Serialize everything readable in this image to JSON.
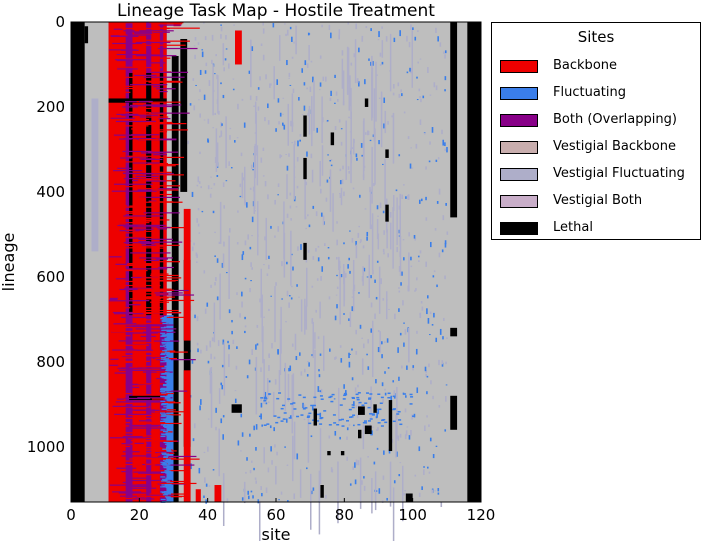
{
  "chart_data": {
    "type": "heatmap",
    "title": "Lineage Task Map - Hostile Treatment",
    "xlabel": "site",
    "ylabel": "lineage",
    "xlim": [
      0,
      120
    ],
    "ylim": [
      1130,
      0
    ],
    "xticks": [
      "0",
      "20",
      "40",
      "60",
      "80",
      "100",
      "120"
    ],
    "yticks": [
      "0",
      "200",
      "400",
      "600",
      "800",
      "1000"
    ],
    "xtick_values": [
      0,
      20,
      40,
      60,
      80,
      100,
      120
    ],
    "ytick_values": [
      0,
      200,
      400,
      600,
      800,
      1000
    ],
    "background_category": "Vestigial Fluctuating",
    "legend": {
      "title": "Sites",
      "placement": "outside-right",
      "items": [
        {
          "label": "Backbone",
          "color": "#ee0000"
        },
        {
          "label": "Fluctuating",
          "color": "#3a7eea"
        },
        {
          "label": "Both (Overlapping)",
          "color": "#880088"
        },
        {
          "label": "Vestigial Backbone",
          "color": "#c9aeae"
        },
        {
          "label": "Vestigial Fluctuating",
          "color": "#aeaec9"
        },
        {
          "label": "Vestigial Both",
          "color": "#c9aec9"
        },
        {
          "label": "Lethal",
          "color": "#000000"
        }
      ]
    },
    "plot_background": "#bebebe",
    "regions": [
      {
        "category": "Lethal",
        "x": [
          0,
          4
        ],
        "y": [
          0,
          1130
        ]
      },
      {
        "category": "Lethal",
        "x": [
          116,
          120
        ],
        "y": [
          0,
          1130
        ]
      },
      {
        "category": "Lethal",
        "x": [
          111,
          113
        ],
        "y": [
          0,
          460
        ]
      },
      {
        "category": "Lethal",
        "x": [
          111,
          113
        ],
        "y": [
          880,
          960
        ]
      },
      {
        "category": "Lethal",
        "x": [
          111,
          113
        ],
        "y": [
          720,
          740
        ]
      },
      {
        "category": "Both (Overlapping)",
        "x": [
          11,
          28
        ],
        "y": [
          0,
          1130
        ]
      },
      {
        "category": "Backbone",
        "x": [
          11,
          16
        ],
        "y": [
          0,
          1130
        ]
      },
      {
        "category": "Backbone",
        "x": [
          18,
          22
        ],
        "y": [
          0,
          1130
        ]
      },
      {
        "category": "Backbone",
        "x": [
          23.5,
          26
        ],
        "y": [
          0,
          1130
        ]
      },
      {
        "category": "Backbone",
        "x": [
          27,
          28
        ],
        "y": [
          0,
          690
        ]
      },
      {
        "category": "Lethal",
        "x": [
          11,
          28
        ],
        "y": [
          180,
          190
        ]
      },
      {
        "category": "Lethal",
        "x": [
          17,
          18
        ],
        "y": [
          120,
          690
        ]
      },
      {
        "category": "Lethal",
        "x": [
          22,
          23.5
        ],
        "y": [
          120,
          690
        ]
      },
      {
        "category": "Lethal",
        "x": [
          26,
          27
        ],
        "y": [
          120,
          690
        ]
      },
      {
        "category": "Lethal",
        "x": [
          17,
          27
        ],
        "y": [
          880,
          890
        ]
      },
      {
        "category": "Lethal",
        "x": [
          29.5,
          31.5
        ],
        "y": [
          80,
          1130
        ]
      },
      {
        "category": "Lethal",
        "x": [
          32,
          34
        ],
        "y": [
          40,
          400
        ]
      },
      {
        "category": "Lethal",
        "x": [
          33,
          35
        ],
        "y": [
          560,
          1000
        ]
      },
      {
        "category": "Lethal",
        "x": [
          4,
          5
        ],
        "y": [
          10,
          50
        ]
      },
      {
        "category": "Backbone",
        "x": [
          30,
          32
        ],
        "y": [
          0,
          10
        ]
      },
      {
        "category": "Backbone",
        "x": [
          33,
          35
        ],
        "y": [
          440,
          750
        ]
      },
      {
        "category": "Backbone",
        "x": [
          33,
          35
        ],
        "y": [
          820,
          1130
        ]
      },
      {
        "category": "Backbone",
        "x": [
          36.5,
          38
        ],
        "y": [
          1100,
          1130
        ]
      },
      {
        "category": "Backbone",
        "x": [
          42,
          44
        ],
        "y": [
          1090,
          1130
        ]
      },
      {
        "category": "Backbone",
        "x": [
          48,
          50
        ],
        "y": [
          20,
          100
        ]
      },
      {
        "category": "Fluctuating",
        "x": [
          28,
          30
        ],
        "y": [
          690,
          1130
        ]
      },
      {
        "category": "Vestigial Fluctuating",
        "x": [
          6,
          8
        ],
        "y": [
          180,
          540
        ]
      },
      {
        "category": "Lethal",
        "x": [
          68,
          69
        ],
        "y": [
          220,
          270
        ]
      },
      {
        "category": "Lethal",
        "x": [
          76,
          77
        ],
        "y": [
          260,
          290
        ]
      },
      {
        "category": "Lethal",
        "x": [
          68,
          69
        ],
        "y": [
          320,
          370
        ]
      },
      {
        "category": "Lethal",
        "x": [
          86,
          87
        ],
        "y": [
          180,
          200
        ]
      },
      {
        "category": "Lethal",
        "x": [
          92,
          93
        ],
        "y": [
          300,
          320
        ]
      },
      {
        "category": "Lethal",
        "x": [
          92,
          93
        ],
        "y": [
          430,
          470
        ]
      },
      {
        "category": "Lethal",
        "x": [
          68,
          69
        ],
        "y": [
          520,
          560
        ]
      },
      {
        "category": "Lethal",
        "x": [
          47,
          50
        ],
        "y": [
          900,
          920
        ]
      },
      {
        "category": "Lethal",
        "x": [
          71,
          72
        ],
        "y": [
          910,
          950
        ]
      },
      {
        "category": "Lethal",
        "x": [
          84,
          86
        ],
        "y": [
          905,
          925
        ]
      },
      {
        "category": "Lethal",
        "x": [
          86,
          88
        ],
        "y": [
          950,
          970
        ]
      },
      {
        "category": "Lethal",
        "x": [
          88.5,
          89.5
        ],
        "y": [
          900,
          920
        ]
      },
      {
        "category": "Lethal",
        "x": [
          93,
          94
        ],
        "y": [
          890,
          1010
        ]
      },
      {
        "category": "Lethal",
        "x": [
          84,
          85
        ],
        "y": [
          960,
          980
        ]
      },
      {
        "category": "Lethal",
        "x": [
          73,
          74
        ],
        "y": [
          1090,
          1120
        ]
      },
      {
        "category": "Lethal",
        "x": [
          98,
          100
        ],
        "y": [
          1110,
          1130
        ]
      },
      {
        "category": "Lethal",
        "x": [
          75,
          76
        ],
        "y": [
          1010,
          1020
        ]
      },
      {
        "category": "Lethal",
        "x": [
          79,
          80
        ],
        "y": [
          1010,
          1020
        ]
      }
    ]
  }
}
